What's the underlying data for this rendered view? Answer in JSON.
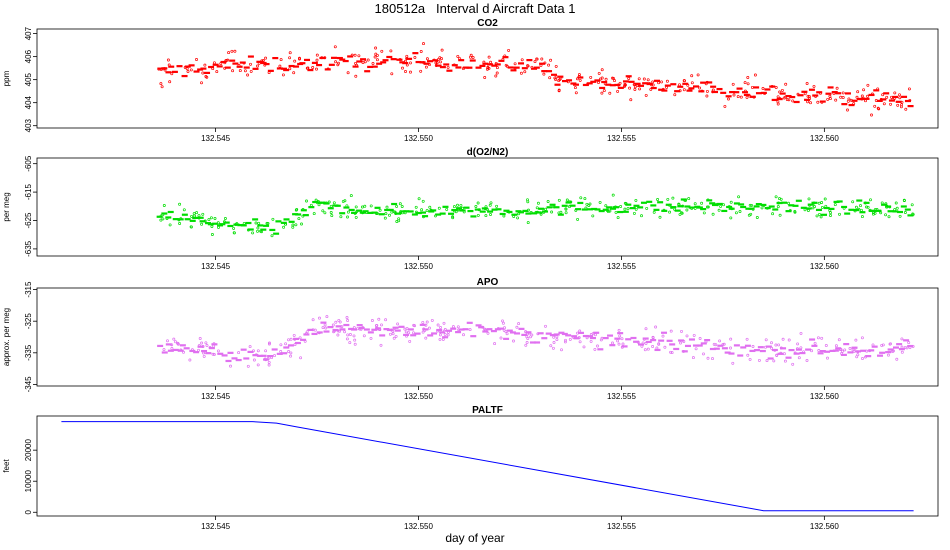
{
  "figure": {
    "title": "180512a   Interval d Aircraft Data 1",
    "xlabel": "day of year"
  },
  "chart_data": [
    {
      "type": "scatter",
      "title": "CO2",
      "ylabel": "ppm",
      "color": "#ff0000",
      "xlim": [
        132.5406,
        132.5628
      ],
      "ylim": [
        402.9,
        407.2
      ],
      "xticks": [
        "132.545",
        "132.550",
        "132.555",
        "132.560"
      ],
      "xtick_values": [
        132.545,
        132.55,
        132.555,
        132.56
      ],
      "yticks": [
        403,
        404,
        405,
        406,
        407
      ],
      "series": {
        "x_start": 132.5436,
        "x_end": 132.5622,
        "trend": [
          [
            132.5436,
            405.3
          ],
          [
            132.545,
            405.6
          ],
          [
            132.5505,
            405.8
          ],
          [
            132.5533,
            405.5
          ],
          [
            132.5535,
            404.9
          ],
          [
            132.556,
            404.7
          ],
          [
            132.5585,
            404.5
          ],
          [
            132.5622,
            404.1
          ]
        ],
        "noise": 0.45
      }
    },
    {
      "type": "scatter",
      "title": "d(O2/N2)",
      "ylabel": "per meg",
      "color": "#00dd00",
      "xlim": [
        132.5406,
        132.5628
      ],
      "ylim": [
        -637.5,
        -603
      ],
      "xticks": [
        "132.545",
        "132.550",
        "132.555",
        "132.560"
      ],
      "xtick_values": [
        132.545,
        132.55,
        132.555,
        132.56
      ],
      "yticks": [
        -605,
        -615,
        -625,
        -635
      ],
      "series": {
        "x_start": 132.5436,
        "x_end": 132.5622,
        "trend": [
          [
            132.5436,
            -623
          ],
          [
            132.545,
            -626
          ],
          [
            132.5465,
            -628
          ],
          [
            132.5476,
            -619
          ],
          [
            132.549,
            -622
          ],
          [
            132.5533,
            -621
          ],
          [
            132.555,
            -620
          ],
          [
            132.5585,
            -620
          ],
          [
            132.5622,
            -621
          ]
        ],
        "noise": 3.0
      }
    },
    {
      "type": "scatter",
      "title": "APO",
      "ylabel": "approx. per meg",
      "color": "#e070f0",
      "xlim": [
        132.5406,
        132.5628
      ],
      "ylim": [
        -345.5,
        -314.5
      ],
      "xticks": [
        "132.545",
        "132.550",
        "132.555",
        "132.560"
      ],
      "xtick_values": [
        132.545,
        132.55,
        132.555,
        132.56
      ],
      "yticks": [
        -315,
        -325,
        -335,
        -345
      ],
      "series": {
        "x_start": 132.5436,
        "x_end": 132.5622,
        "trend": [
          [
            132.5436,
            -333
          ],
          [
            132.545,
            -335
          ],
          [
            132.5465,
            -336
          ],
          [
            132.5476,
            -327
          ],
          [
            132.5515,
            -328
          ],
          [
            132.5535,
            -330
          ],
          [
            132.5585,
            -334
          ],
          [
            132.5622,
            -334
          ]
        ],
        "noise": 3.2
      }
    },
    {
      "type": "line",
      "title": "PALTF",
      "ylabel": "feet",
      "color": "#0000ff",
      "xlim": [
        132.5406,
        132.5628
      ],
      "ylim": [
        -1200,
        31000
      ],
      "xticks": [
        "132.545",
        "132.550",
        "132.555",
        "132.560"
      ],
      "xtick_values": [
        132.545,
        132.55,
        132.555,
        132.56
      ],
      "yticks": [
        0,
        10000,
        20000
      ],
      "x": [
        132.5412,
        132.5436,
        132.5459,
        132.5465,
        132.547,
        132.5585,
        132.5622
      ],
      "y": [
        29200,
        29200,
        29200,
        28700,
        27500,
        500,
        500
      ]
    }
  ]
}
